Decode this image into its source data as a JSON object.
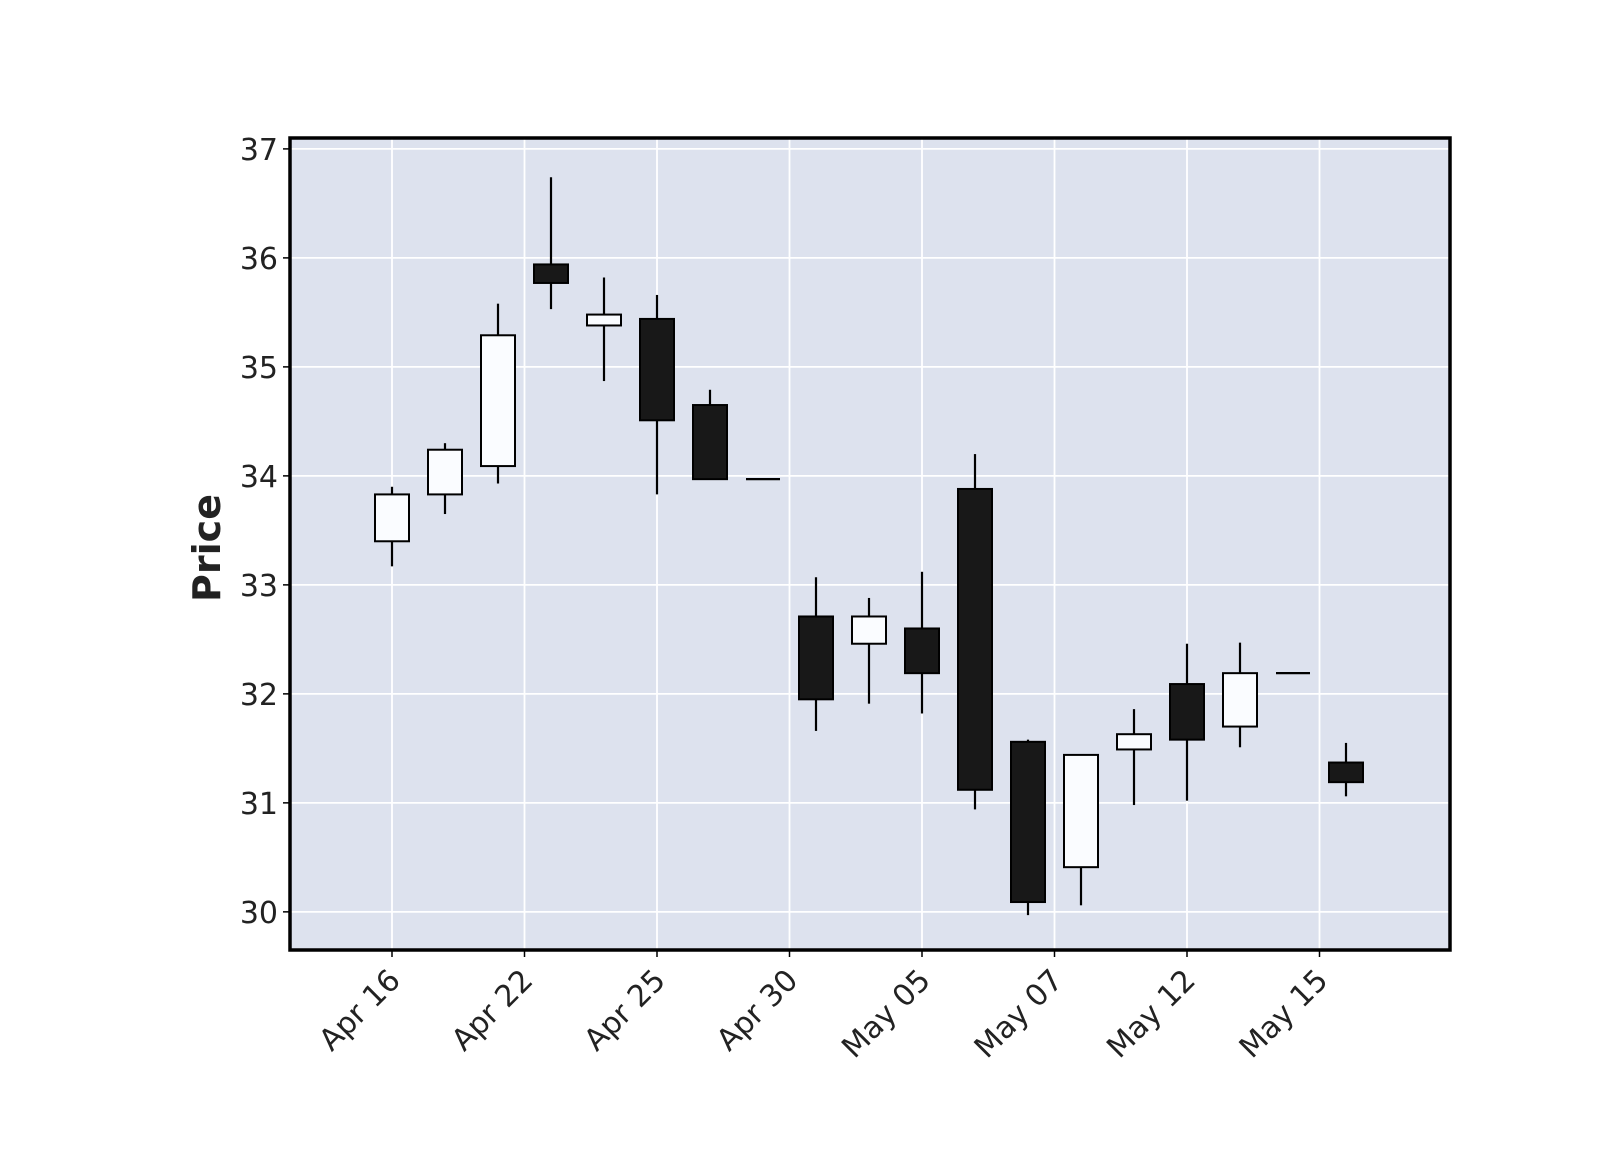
{
  "chart_data": {
    "type": "candlestick",
    "title": "",
    "xlabel": "",
    "ylabel": "Price",
    "ylim": [
      29.65,
      37.1
    ],
    "y_ticks": [
      30,
      31,
      32,
      33,
      34,
      35,
      36,
      37
    ],
    "x_tick_labels": [
      "Apr 16",
      "Apr 22",
      "Apr 25",
      "Apr 30",
      "May 05",
      "May 07",
      "May 12",
      "May 15"
    ],
    "grid": true,
    "colors": {
      "background": "#dde2ee",
      "grid": "#ffffff",
      "up_fill": "#fafcff",
      "down_fill": "#181818",
      "edge": "#000000"
    },
    "candles": [
      {
        "open": 33.4,
        "high": 33.9,
        "low": 33.17,
        "close": 33.83
      },
      {
        "open": 33.83,
        "high": 34.3,
        "low": 33.65,
        "close": 34.24
      },
      {
        "open": 34.09,
        "high": 35.58,
        "low": 33.93,
        "close": 35.29
      },
      {
        "open": 35.94,
        "high": 36.74,
        "low": 35.53,
        "close": 35.77
      },
      {
        "open": 35.38,
        "high": 35.82,
        "low": 34.87,
        "close": 35.48
      },
      {
        "open": 35.44,
        "high": 35.66,
        "low": 33.83,
        "close": 34.51
      },
      {
        "open": 34.65,
        "high": 34.79,
        "low": 33.97,
        "close": 33.97
      },
      {
        "open": 33.97,
        "high": 33.97,
        "low": 33.97,
        "close": 33.97
      },
      {
        "open": 32.71,
        "high": 33.07,
        "low": 31.66,
        "close": 31.95
      },
      {
        "open": 32.46,
        "high": 32.88,
        "low": 31.91,
        "close": 32.71
      },
      {
        "open": 32.6,
        "high": 33.12,
        "low": 31.82,
        "close": 32.19
      },
      {
        "open": 33.88,
        "high": 34.2,
        "low": 30.94,
        "close": 31.12
      },
      {
        "open": 31.56,
        "high": 31.58,
        "low": 29.97,
        "close": 30.09
      },
      {
        "open": 30.41,
        "high": 31.44,
        "low": 30.06,
        "close": 31.44
      },
      {
        "open": 31.49,
        "high": 31.86,
        "low": 30.98,
        "close": 31.63
      },
      {
        "open": 32.09,
        "high": 32.46,
        "low": 31.02,
        "close": 31.58
      },
      {
        "open": 31.7,
        "high": 32.47,
        "low": 31.51,
        "close": 32.19
      },
      {
        "open": 32.19,
        "high": 32.19,
        "low": 32.19,
        "close": 32.19
      },
      {
        "open": 31.37,
        "high": 31.55,
        "low": 31.06,
        "close": 31.19
      }
    ]
  }
}
